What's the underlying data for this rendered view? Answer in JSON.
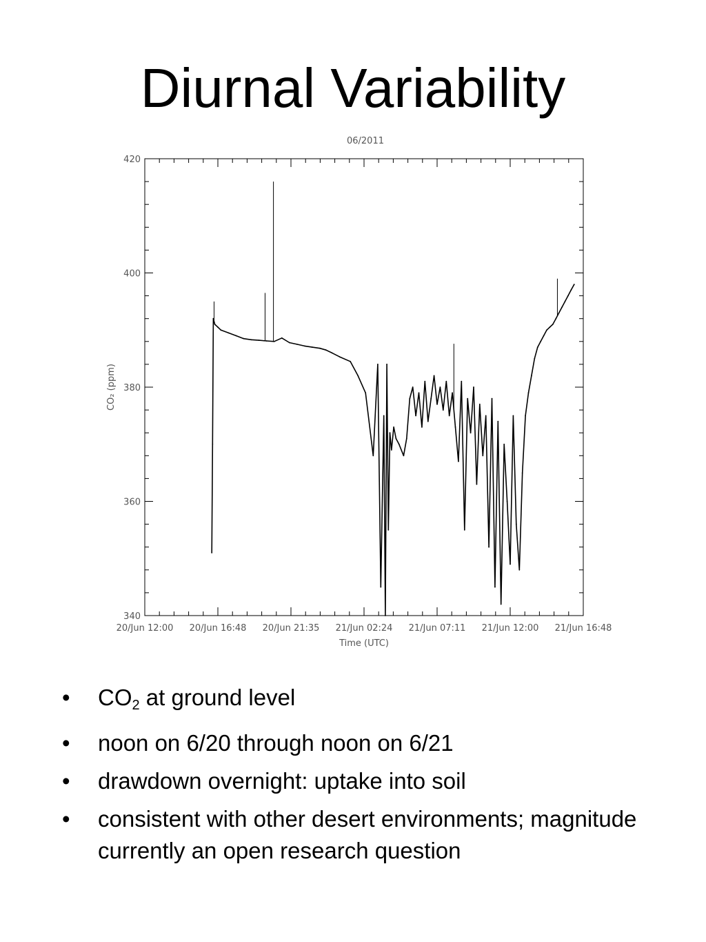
{
  "slide": {
    "title": "Diurnal Variability",
    "bullets": [
      {
        "prefix": "CO",
        "sub": "2",
        "rest": " at ground level"
      },
      {
        "text": "noon on 6/20 through noon on 6/21"
      },
      {
        "text": "drawdown overnight: uptake into soil"
      },
      {
        "text": "consistent with other desert environments; magnitude currently an open research question"
      }
    ]
  },
  "chart_data": {
    "type": "line",
    "title": "06/2011",
    "xlabel": "Time (UTC)",
    "ylabel": "CO₂ (ppm)",
    "x_ticks": [
      "20/Jun 12:00",
      "20/Jun 16:48",
      "20/Jun 21:35",
      "21/Jun 02:24",
      "21/Jun 07:11",
      "21/Jun 12:00",
      "21/Jun 16:48"
    ],
    "y_ticks": [
      340,
      360,
      380,
      400,
      420
    ],
    "ylim": [
      340,
      420
    ],
    "xlim_hours": [
      0,
      28.8
    ],
    "line_color": "#000000",
    "series": [
      {
        "x": [
          4.4,
          4.45,
          4.5,
          4.6,
          4.8,
          5.0,
          5.5,
          6.0,
          6.5,
          7.0,
          7.5,
          8.0,
          8.5,
          9.0,
          9.5,
          10.0,
          10.5,
          11.0,
          11.5,
          11.9,
          12.3,
          12.8,
          13.5,
          14.0,
          14.5,
          15.0,
          15.3,
          15.5,
          15.7,
          15.8,
          15.9,
          16.0,
          16.1,
          16.2,
          16.35,
          16.5,
          16.7,
          17.0,
          17.2,
          17.4,
          17.6,
          17.8,
          18.0,
          18.2,
          18.4,
          18.6,
          18.8,
          19.0,
          19.2,
          19.4,
          19.6,
          19.8,
          20.0,
          20.2,
          20.4,
          20.6,
          20.8,
          21.0,
          21.2,
          21.4,
          21.6,
          21.8,
          22.0,
          22.2,
          22.4,
          22.6,
          22.8,
          23.0,
          23.2,
          23.4,
          23.6,
          23.8,
          24.0,
          24.2,
          24.4,
          24.6,
          24.8,
          25.0,
          25.2,
          25.4,
          25.6,
          25.8,
          26.0,
          26.2,
          26.4,
          26.6,
          26.8,
          27.0,
          27.2,
          27.4,
          27.6,
          27.8,
          28.0,
          28.2
        ],
        "y": [
          351,
          370,
          392,
          391,
          390.5,
          390,
          389.5,
          389,
          388.5,
          388.3,
          388.2,
          388.1,
          388,
          388.6,
          387.8,
          387.5,
          387.2,
          387,
          386.8,
          386.5,
          386,
          385.3,
          384.5,
          382,
          379,
          368,
          384,
          345,
          375,
          340,
          384,
          355,
          372,
          369,
          373,
          371,
          370,
          368,
          371,
          378,
          380,
          375,
          379,
          373,
          381,
          374,
          378,
          382,
          377,
          380,
          376,
          381,
          375,
          379,
          373,
          367,
          381,
          355,
          378,
          372,
          380,
          363,
          377,
          368,
          375,
          352,
          378,
          345,
          374,
          342,
          370,
          360,
          349,
          375,
          356,
          348,
          365,
          375,
          379,
          382,
          385,
          387,
          388,
          389,
          390,
          390.5,
          391,
          392,
          393,
          394,
          395,
          396,
          397,
          398
        ]
      }
    ],
    "spikes": [
      {
        "x": 4.55,
        "y": 395
      },
      {
        "x": 7.9,
        "y": 396.5
      },
      {
        "x": 8.45,
        "y": 416
      },
      {
        "x": 20.3,
        "y": 387.6
      },
      {
        "x": 27.1,
        "y": 399
      }
    ]
  }
}
